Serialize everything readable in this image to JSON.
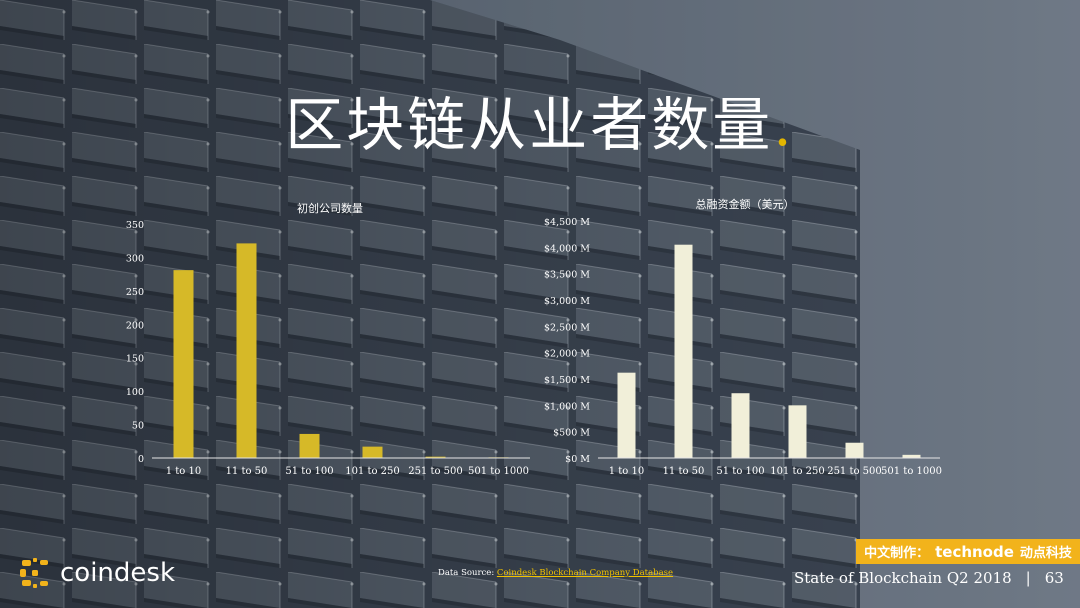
{
  "slide": {
    "title": "区块链从业者数量",
    "title_dot": ".",
    "source_prefix": "Data Source: ",
    "source_link": "Coindesk Blockchain Company Database",
    "brand_logo_text": "coindesk",
    "badge_prefix": "中文制作：",
    "badge_brand": "technode",
    "badge_suffix": "动点科技",
    "report_name": "State of Blockchain Q2 2018",
    "separator": "|",
    "page_number": "63",
    "colors": {
      "accent_yellow": "#d6b928",
      "bar_cream": "#f1efd9",
      "badge_bg": "#f2b31b",
      "background": "#6f7a86"
    }
  },
  "chart_data": [
    {
      "type": "bar",
      "title": "初创公司数量",
      "categories": [
        "1 to 10",
        "11 to 50",
        "51 to 100",
        "101 to 250",
        "251 to 500",
        "501 to 1000"
      ],
      "values": [
        281,
        321,
        36,
        17,
        2,
        1
      ],
      "ylim": [
        0,
        350
      ],
      "yticks": [
        0,
        50,
        100,
        150,
        200,
        250,
        300,
        350
      ],
      "ytick_labels": [
        "0",
        "50",
        "100",
        "150",
        "200",
        "250",
        "300",
        "350"
      ],
      "xlabel": "",
      "ylabel": "",
      "color": "#d6b928",
      "grid": false,
      "legend": "none"
    },
    {
      "type": "bar",
      "title": "总融资金额（美元）",
      "categories": [
        "1 to 10",
        "11 to 50",
        "51 to 100",
        "101 to 250",
        "251 to 500",
        "501 to 1000"
      ],
      "values": [
        1620,
        4050,
        1230,
        1000,
        290,
        60
      ],
      "ylim": [
        0,
        4500
      ],
      "yticks": [
        0,
        500,
        1000,
        1500,
        2000,
        2500,
        3000,
        3500,
        4000,
        4500
      ],
      "ytick_labels": [
        "$0 M",
        "$500 M",
        "$1,000 M",
        "$1,500 M",
        "$2,000 M",
        "$2,500 M",
        "$3,000 M",
        "$3,500 M",
        "$4,000 M",
        "$4,500 M"
      ],
      "xlabel": "",
      "ylabel": "",
      "color": "#f1efd9",
      "grid": false,
      "legend": "none"
    }
  ]
}
